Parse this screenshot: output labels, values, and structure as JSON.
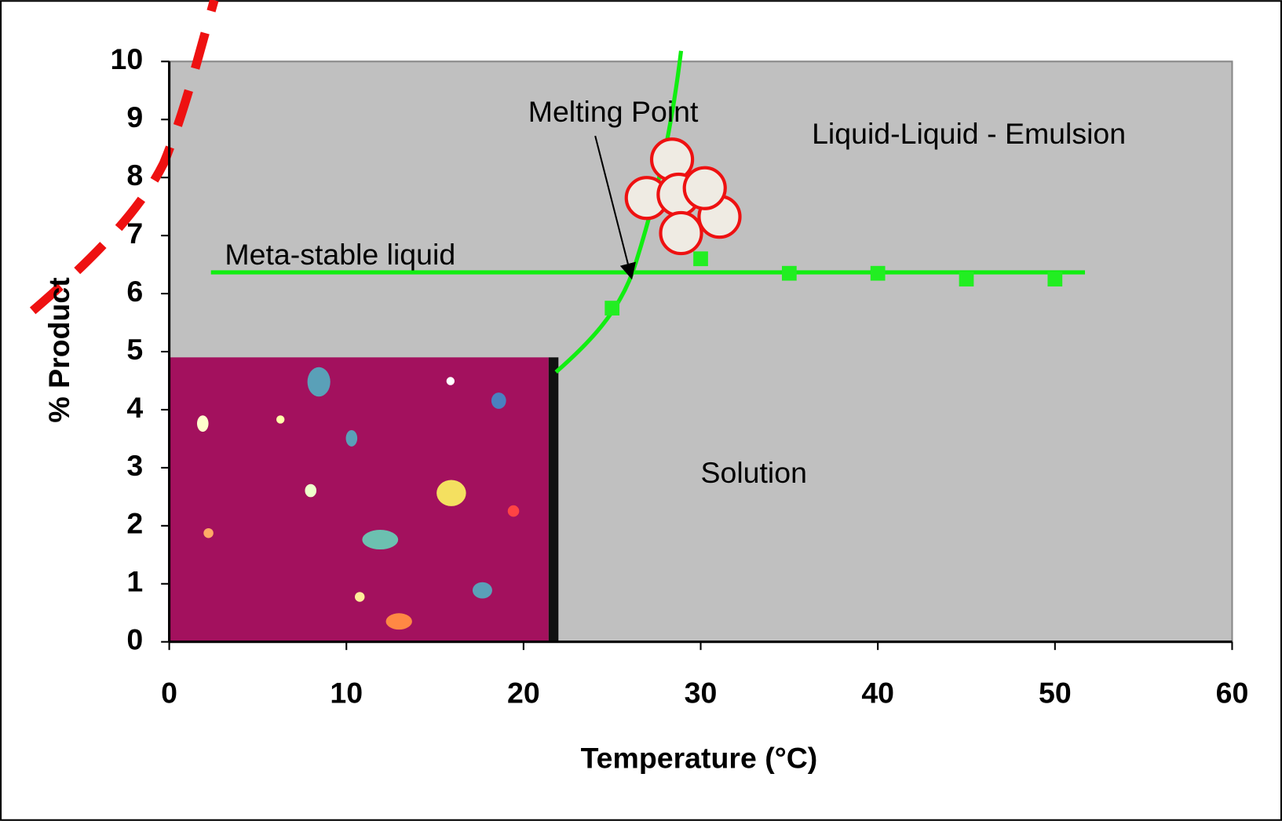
{
  "chart_data": {
    "type": "scatter",
    "x_label": "Temperature (°C)",
    "y_label": "% Product",
    "x": [
      25,
      30,
      35,
      40,
      45,
      50
    ],
    "values": [
      5.75,
      6.6,
      6.35,
      6.35,
      6.25,
      6.25
    ],
    "color": "#22ee22",
    "xlim": [
      0,
      60
    ],
    "xticks": [
      0,
      10,
      20,
      30,
      40,
      50,
      60
    ],
    "ylim": [
      0,
      10
    ],
    "yticks": [
      0,
      1,
      2,
      3,
      4,
      5,
      6,
      7,
      8,
      9,
      10
    ],
    "grid": false,
    "annotations": [
      "Melting Point",
      "Liquid-Liquid - Emulsion",
      "Meta-stable liquid",
      "Solution"
    ]
  }
}
